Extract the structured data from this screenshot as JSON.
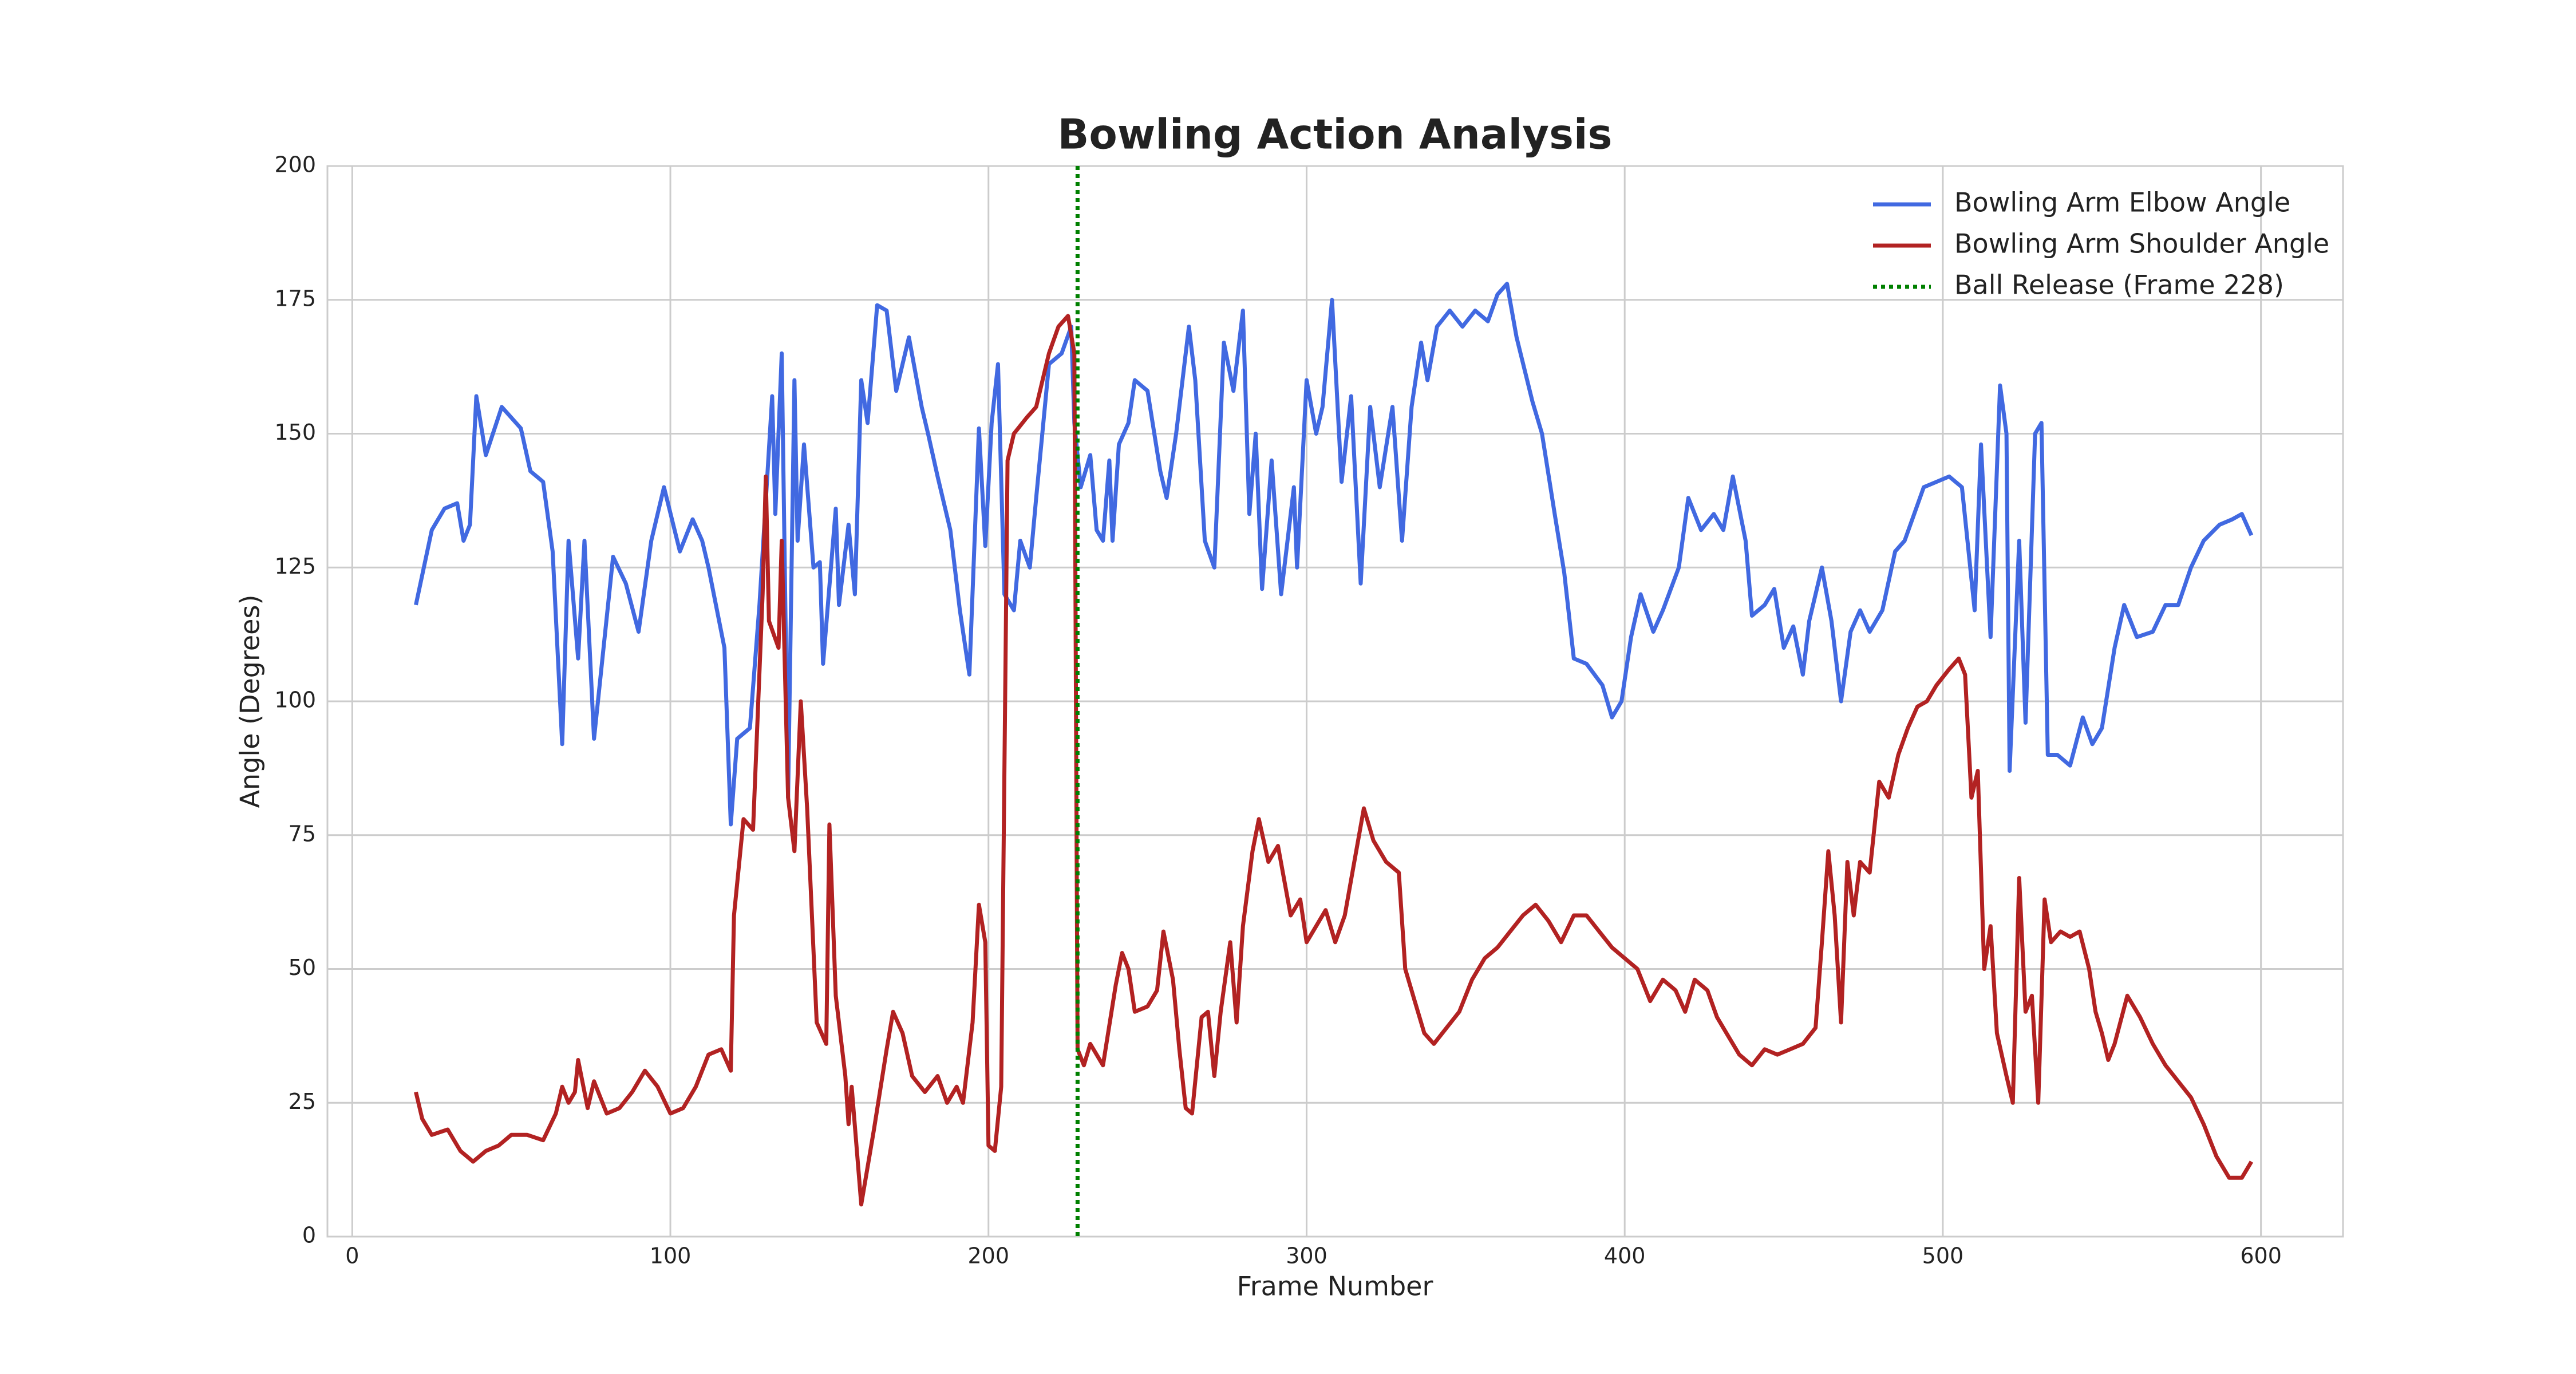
{
  "chart_data": {
    "type": "line",
    "title": "Bowling Action Analysis",
    "x_label": "Frame Number",
    "y_label": "Angle (Degrees)",
    "xlim": [
      -7.8,
      625.8
    ],
    "ylim": [
      0,
      200
    ],
    "xticks": [
      0,
      100,
      200,
      300,
      400,
      500,
      600
    ],
    "yticks": [
      0,
      25,
      50,
      75,
      100,
      125,
      150,
      175,
      200
    ],
    "grid": true,
    "legend": "upper right",
    "series": [
      {
        "name": "Bowling Arm Elbow Angle",
        "color": "#4169e1",
        "x": [
          20,
          25,
          29,
          33,
          35,
          37,
          39,
          42,
          47,
          53,
          56,
          60,
          63,
          66,
          68,
          71,
          73,
          76,
          82,
          86,
          90,
          94,
          98,
          103,
          107,
          110,
          112,
          117,
          119,
          121,
          125,
          128,
          132,
          133,
          135,
          137,
          139,
          140,
          142,
          145,
          147,
          148,
          152,
          153,
          156,
          158,
          160,
          162,
          165,
          168,
          171,
          175,
          179,
          181,
          184,
          188,
          191,
          194,
          197,
          199,
          201,
          203,
          205,
          208,
          210,
          213,
          215,
          219,
          223,
          226,
          227,
          229,
          232,
          234,
          236,
          238,
          239,
          241,
          244,
          246,
          250,
          254,
          256,
          259,
          263,
          265,
          268,
          271,
          274,
          277,
          280,
          282,
          284,
          286,
          289,
          292,
          296,
          297,
          300,
          303,
          305,
          308,
          311,
          314,
          317,
          320,
          323,
          327,
          330,
          333,
          336,
          338,
          341,
          345,
          349,
          353,
          357,
          360,
          363,
          366,
          371,
          374,
          378,
          381,
          384,
          388,
          393,
          396,
          399,
          402,
          405,
          409,
          412,
          417,
          420,
          424,
          428,
          431,
          434,
          438,
          440,
          444,
          447,
          450,
          453,
          456,
          458,
          462,
          465,
          468,
          471,
          474,
          477,
          481,
          485,
          488,
          491,
          494,
          498,
          502,
          506,
          510,
          512,
          515,
          518,
          520,
          521,
          524,
          526,
          529,
          531,
          533,
          536,
          540,
          544,
          547,
          550,
          554,
          557,
          561,
          566,
          570,
          574,
          578,
          582,
          587,
          591,
          594,
          597
        ],
        "values": [
          118,
          132,
          136,
          137,
          130,
          133,
          157,
          146,
          155,
          151,
          143,
          141,
          128,
          92,
          130,
          108,
          130,
          93,
          127,
          122,
          113,
          130,
          140,
          128,
          134,
          130,
          125,
          110,
          77,
          93,
          95,
          118,
          157,
          135,
          165,
          82,
          160,
          130,
          148,
          125,
          126,
          107,
          136,
          118,
          133,
          120,
          160,
          152,
          174,
          173,
          158,
          168,
          155,
          150,
          142,
          132,
          117,
          105,
          151,
          129,
          152,
          163,
          120,
          117,
          130,
          125,
          138,
          163,
          165,
          170,
          152,
          140,
          146,
          132,
          130,
          145,
          130,
          148,
          152,
          160,
          158,
          143,
          138,
          150,
          170,
          160,
          130,
          125,
          167,
          158,
          173,
          135,
          150,
          121,
          145,
          120,
          140,
          125,
          160,
          150,
          155,
          175,
          141,
          157,
          122,
          155,
          140,
          155,
          130,
          155,
          167,
          160,
          170,
          173,
          170,
          173,
          171,
          176,
          178,
          168,
          156,
          150,
          135,
          124,
          108,
          107,
          103,
          97,
          100,
          112,
          120,
          113,
          117,
          125,
          138,
          132,
          135,
          132,
          142,
          130,
          116,
          118,
          121,
          110,
          114,
          105,
          115,
          125,
          115,
          100,
          113,
          117,
          113,
          117,
          128,
          130,
          135,
          140,
          141,
          142,
          140,
          117,
          148,
          112,
          159,
          150,
          87,
          130,
          96,
          150,
          152,
          90,
          90,
          88,
          97,
          92,
          95,
          110,
          118,
          112,
          113,
          118,
          118,
          125,
          130,
          133,
          134,
          135,
          131
        ]
      },
      {
        "name": "Bowling Arm Shoulder Angle",
        "color": "#b22222",
        "x": [
          20,
          22,
          25,
          30,
          34,
          38,
          42,
          46,
          50,
          55,
          60,
          64,
          66,
          68,
          70,
          71,
          74,
          76,
          80,
          84,
          88,
          92,
          96,
          100,
          104,
          108,
          112,
          116,
          119,
          120,
          123,
          126,
          129,
          130,
          131,
          134,
          135,
          137,
          139,
          141,
          143,
          146,
          149,
          150,
          152,
          155,
          156,
          157,
          160,
          164,
          168,
          170,
          173,
          176,
          180,
          184,
          187,
          190,
          192,
          195,
          197,
          199,
          200,
          202,
          204,
          206,
          208,
          212,
          215,
          219,
          222,
          225,
          227,
          228,
          230,
          232,
          236,
          240,
          242,
          244,
          246,
          250,
          253,
          255,
          258,
          260,
          262,
          264,
          267,
          269,
          271,
          273,
          276,
          278,
          280,
          283,
          285,
          288,
          291,
          295,
          298,
          300,
          303,
          306,
          309,
          312,
          315,
          318,
          321,
          325,
          329,
          331,
          334,
          337,
          340,
          344,
          348,
          352,
          356,
          360,
          364,
          368,
          372,
          376,
          380,
          384,
          388,
          392,
          396,
          400,
          404,
          408,
          412,
          416,
          419,
          422,
          426,
          429,
          432,
          436,
          440,
          444,
          448,
          452,
          456,
          460,
          462,
          464,
          466,
          468,
          470,
          472,
          474,
          477,
          480,
          483,
          486,
          489,
          492,
          495,
          498,
          502,
          505,
          507,
          509,
          511,
          513,
          515,
          517,
          520,
          522,
          524,
          526,
          528,
          530,
          532,
          534,
          537,
          540,
          543,
          546,
          548,
          550,
          552,
          554,
          558,
          562,
          566,
          570,
          574,
          578,
          582,
          586,
          590,
          594,
          597
        ],
        "values": [
          27,
          22,
          19,
          20,
          16,
          14,
          16,
          17,
          19,
          19,
          18,
          23,
          28,
          25,
          27,
          33,
          24,
          29,
          23,
          24,
          27,
          31,
          28,
          23,
          24,
          28,
          34,
          35,
          31,
          60,
          78,
          76,
          120,
          142,
          115,
          110,
          130,
          82,
          72,
          100,
          80,
          40,
          36,
          77,
          45,
          30,
          21,
          28,
          6,
          20,
          35,
          42,
          38,
          30,
          27,
          30,
          25,
          28,
          25,
          40,
          62,
          55,
          17,
          16,
          28,
          145,
          150,
          153,
          155,
          165,
          170,
          172,
          165,
          35,
          32,
          36,
          32,
          47,
          53,
          50,
          42,
          43,
          46,
          57,
          48,
          35,
          24,
          23,
          41,
          42,
          30,
          42,
          55,
          40,
          58,
          72,
          78,
          70,
          73,
          60,
          63,
          55,
          58,
          61,
          55,
          60,
          70,
          80,
          74,
          70,
          68,
          50,
          44,
          38,
          36,
          39,
          42,
          48,
          52,
          54,
          57,
          60,
          62,
          59,
          55,
          60,
          60,
          57,
          54,
          52,
          50,
          44,
          48,
          46,
          42,
          48,
          46,
          41,
          38,
          34,
          32,
          35,
          34,
          35,
          36,
          39,
          55,
          72,
          60,
          40,
          70,
          60,
          70,
          68,
          85,
          82,
          90,
          95,
          99,
          100,
          103,
          106,
          108,
          105,
          82,
          87,
          50,
          58,
          38,
          30,
          25,
          67,
          42,
          45,
          25,
          63,
          55,
          57,
          56,
          57,
          50,
          42,
          38,
          33,
          36,
          45,
          41,
          36,
          32,
          29,
          26,
          21,
          15,
          11,
          11,
          14
        ]
      }
    ],
    "vlines": [
      {
        "x": 228,
        "name": "Ball Release (Frame 228)",
        "color": "#008000"
      }
    ]
  }
}
